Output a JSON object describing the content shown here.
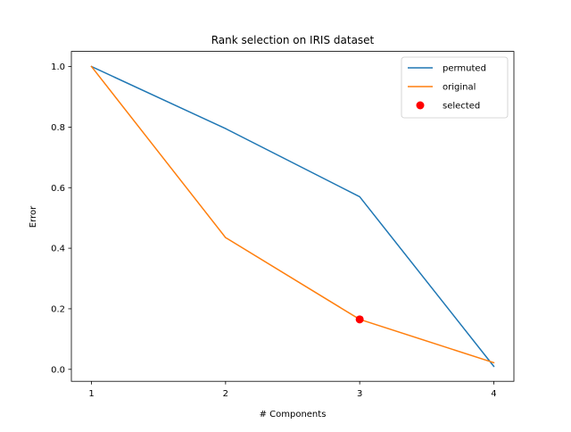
{
  "chart_data": {
    "type": "line",
    "title": "Rank selection on IRIS dataset",
    "xlabel": "# Components",
    "ylabel": "Error",
    "xlim": [
      0.85,
      4.15
    ],
    "ylim": [
      -0.0395,
      1.05
    ],
    "xticks": [
      1,
      2,
      3,
      4
    ],
    "yticks": [
      0.0,
      0.2,
      0.4,
      0.6,
      0.8,
      1.0
    ],
    "grid": false,
    "legend_position": "top-right",
    "series": [
      {
        "name": "permuted",
        "color": "#1f77b4",
        "x": [
          1,
          2,
          3,
          4
        ],
        "y": [
          1.0,
          0.795,
          0.57,
          0.01
        ]
      },
      {
        "name": "original",
        "color": "#ff7f0e",
        "x": [
          1,
          2,
          3,
          4
        ],
        "y": [
          1.0,
          0.435,
          0.165,
          0.022
        ]
      }
    ],
    "points": [
      {
        "name": "selected",
        "color": "#ff0000",
        "x": 3,
        "y": 0.165
      }
    ]
  }
}
